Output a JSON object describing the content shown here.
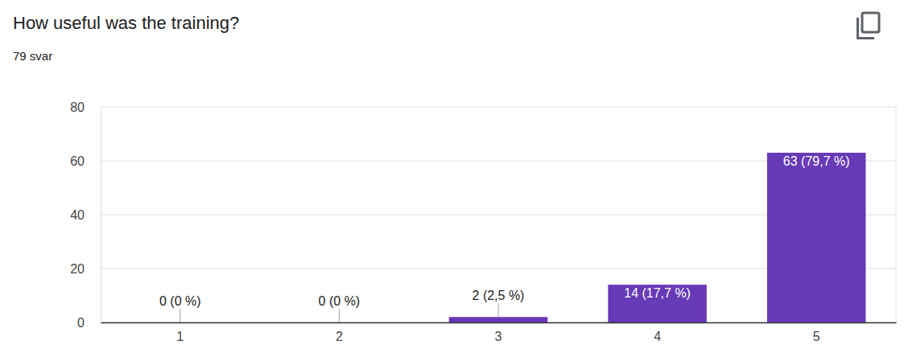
{
  "chart_data": {
    "type": "bar",
    "title": "How useful was the training?",
    "subtitle": "79 svar",
    "categories": [
      "1",
      "2",
      "3",
      "4",
      "5"
    ],
    "values": [
      0,
      0,
      2,
      14,
      63
    ],
    "value_labels": [
      "0 (0 %)",
      "0 (0 %)",
      "2 (2,5 %)",
      "14 (17,7 %)",
      "63 (79,7 %)"
    ],
    "color": "#673ab7",
    "ylim": [
      0,
      80
    ],
    "yticks": [
      0,
      20,
      40,
      60,
      80
    ],
    "grid": true,
    "data_labels": true
  }
}
